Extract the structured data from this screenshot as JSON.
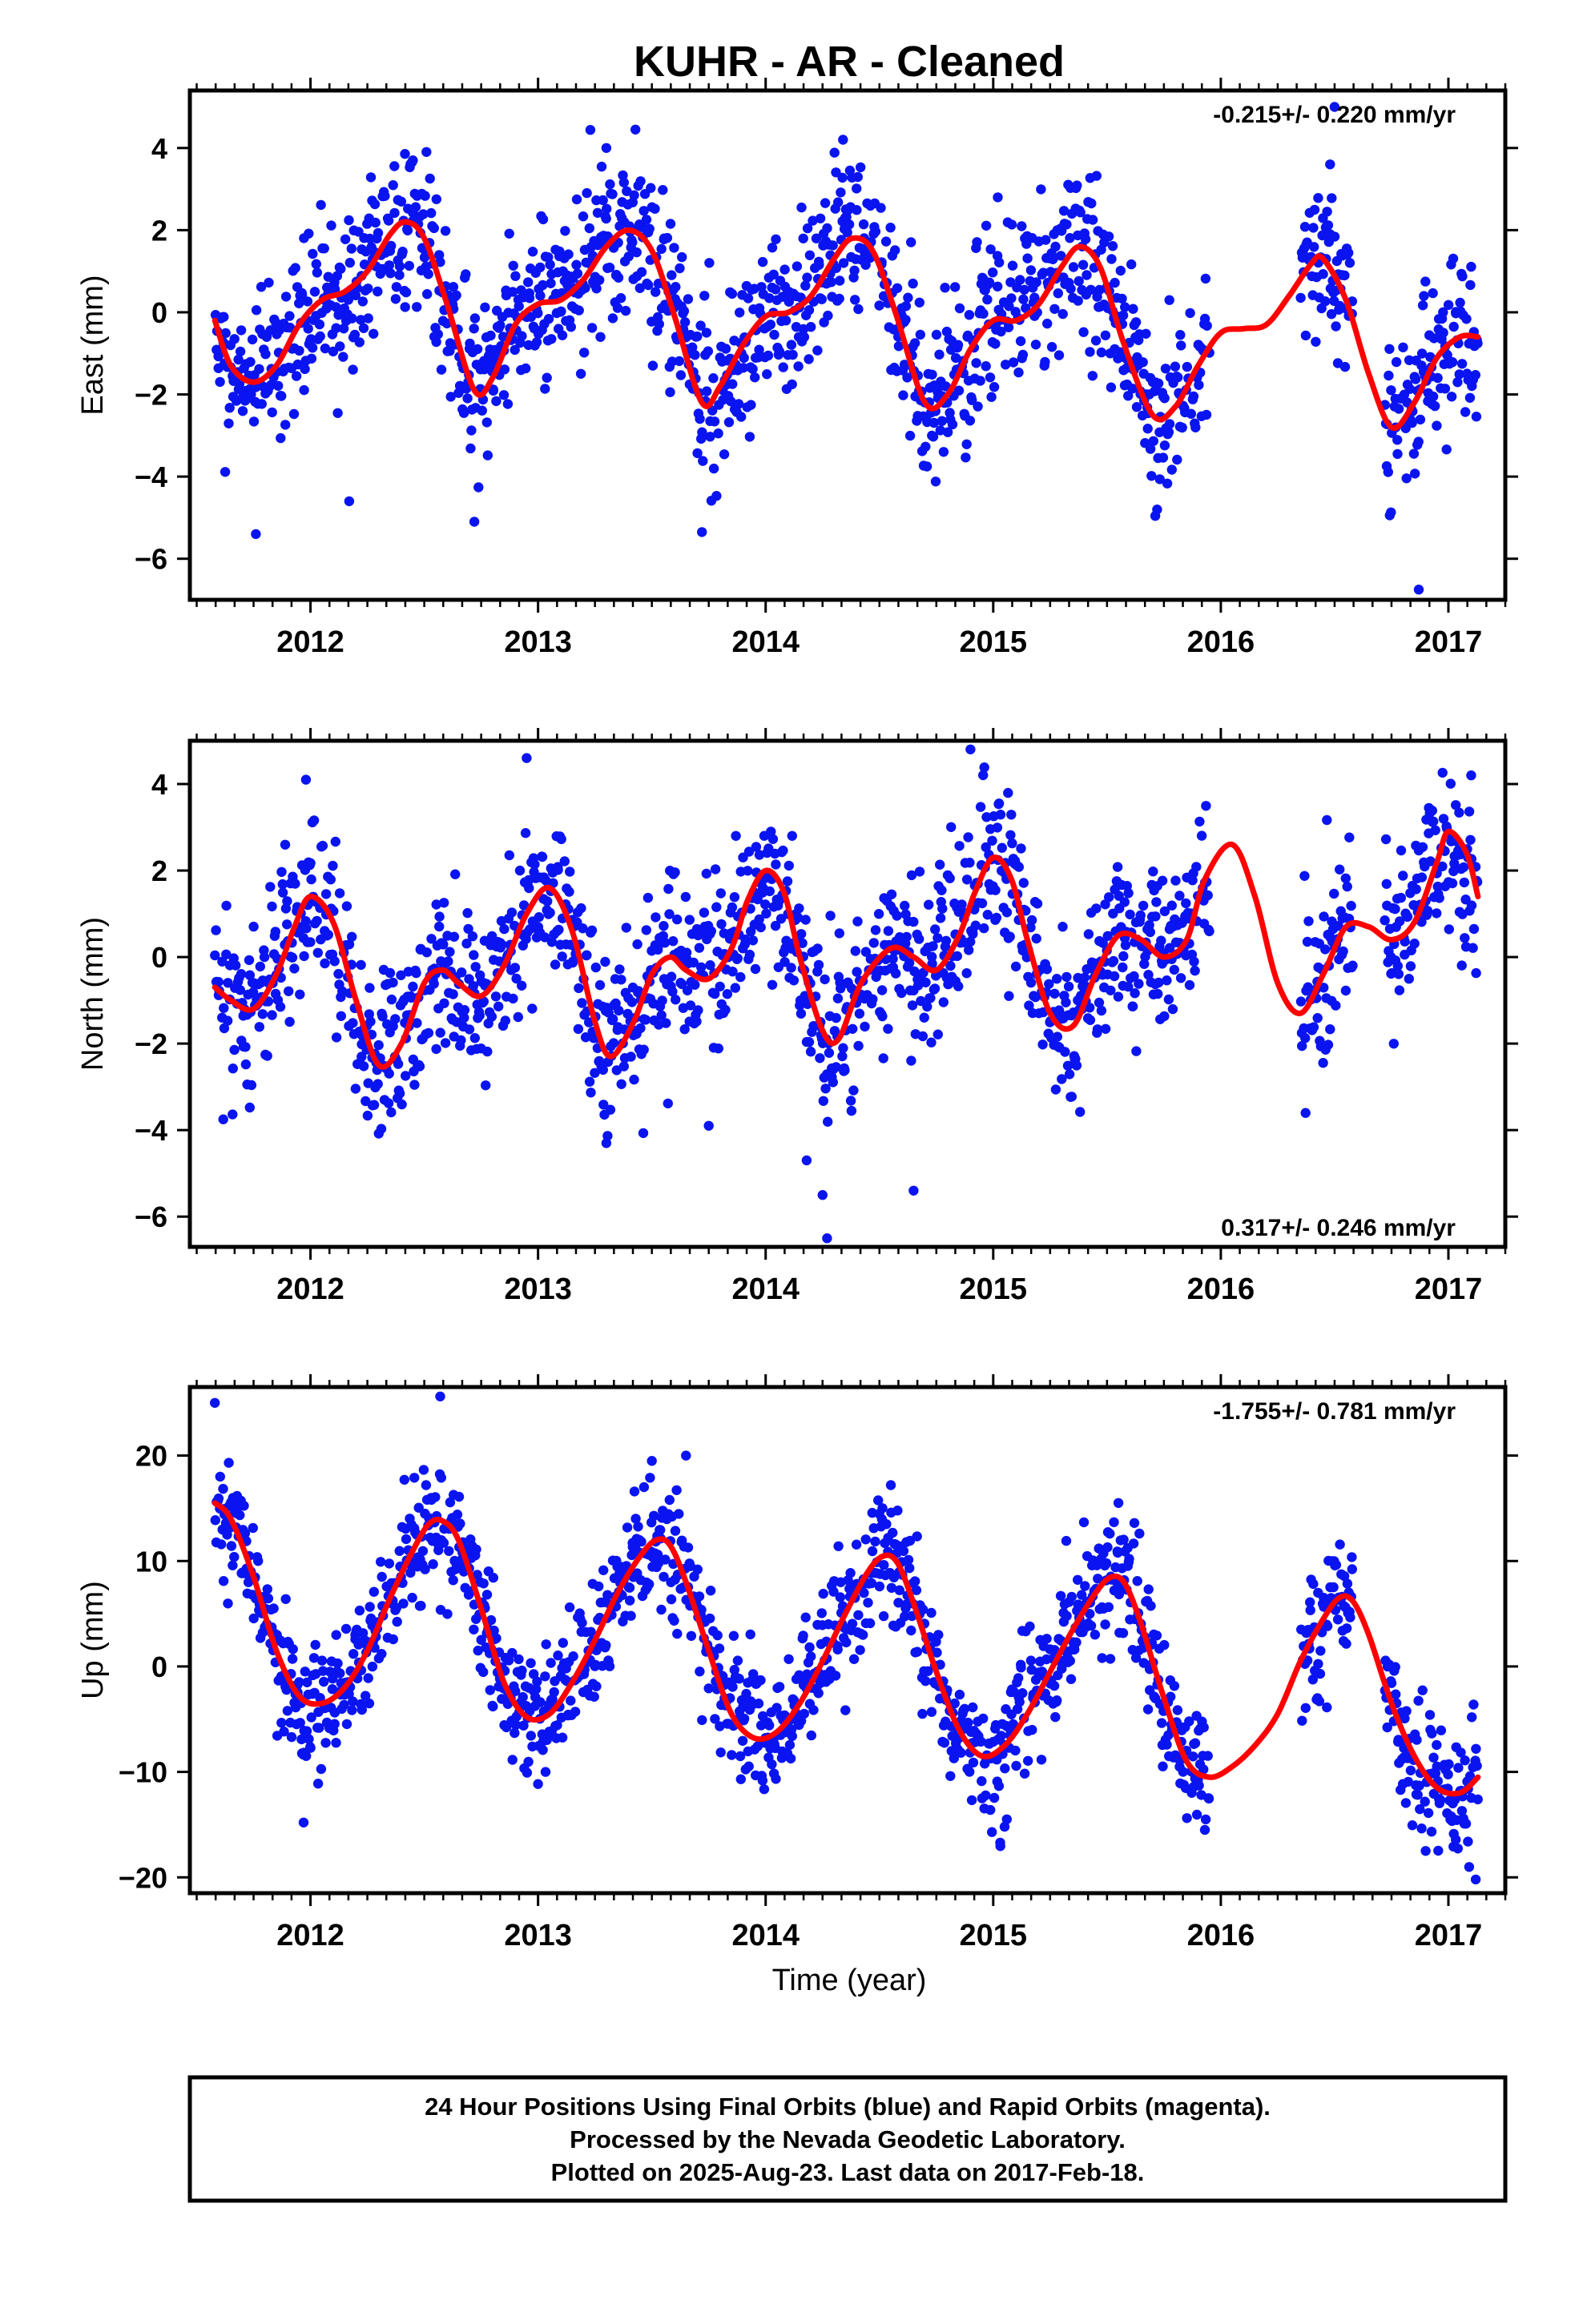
{
  "page": {
    "title": "KUHR  - AR - Cleaned",
    "xlabel": "Time (year)",
    "footer": [
      "24 Hour Positions Using Final Orbits (blue) and Rapid Orbits (magenta).",
      "Processed by the Nevada Geodetic Laboratory.",
      "Plotted on 2025-Aug-23. Last data on 2017-Feb-18."
    ]
  },
  "colors": {
    "final_orbits": "#0a14f0",
    "model_fit": "#ff0000",
    "frame": "#000000",
    "background": "#ffffff"
  },
  "chart_data": [
    {
      "type": "scatter",
      "component": "east",
      "ylabel": "East (mm)",
      "rate_label": "-0.215+/- 0.220 mm/yr",
      "rate_placement": "top-right",
      "xlim": [
        2011.47,
        2017.25
      ],
      "ylim": [
        -7,
        5.4
      ],
      "xticks": [
        2012,
        2013,
        2014,
        2015,
        2016,
        2017
      ],
      "xtick_labels": [
        "2012",
        "2013",
        "2014",
        "2015",
        "2016",
        "2017"
      ],
      "yticks": [
        -6,
        -4,
        -2,
        0,
        2,
        4
      ],
      "ytick_labels": [
        "−6",
        "−4",
        "−2",
        "0",
        "2",
        "4"
      ],
      "grid": false,
      "observations": {
        "name": "Final Orbits",
        "data_spans": [
          [
            2011.58,
            2011.9
          ],
          [
            2011.9,
            2012.9
          ],
          [
            2012.9,
            2013.9
          ],
          [
            2013.9,
            2014.9
          ],
          [
            2014.9,
            2015.95
          ],
          [
            2016.35,
            2016.58
          ],
          [
            2016.72,
            2017.13
          ]
        ],
        "scatter_sd": 1.0,
        "outliers": [
          [
            2011.76,
            -5.4
          ],
          [
            2012.17,
            -4.6
          ],
          [
            2012.72,
            -5.1
          ],
          [
            2013.72,
            -5.35
          ],
          [
            2014.34,
            4.2
          ],
          [
            2015.72,
            -4.8
          ],
          [
            2016.48,
            3.6
          ],
          [
            2016.5,
            5.0
          ],
          [
            2016.87,
            -6.75
          ],
          [
            2013.3,
            4.0
          ],
          [
            2012.45,
            3.7
          ],
          [
            2015.02,
            2.8
          ]
        ]
      },
      "model_fit": {
        "name": "Model",
        "x": [
          2011.58,
          2011.65,
          2011.75,
          2011.85,
          2011.95,
          2012.05,
          2012.15,
          2012.25,
          2012.35,
          2012.42,
          2012.5,
          2012.6,
          2012.72,
          2012.8,
          2012.9,
          2013.0,
          2013.1,
          2013.2,
          2013.3,
          2013.4,
          2013.5,
          2013.6,
          2013.72,
          2013.8,
          2013.9,
          2014.0,
          2014.1,
          2014.2,
          2014.3,
          2014.38,
          2014.47,
          2014.57,
          2014.7,
          2014.8,
          2014.9,
          2015.0,
          2015.1,
          2015.2,
          2015.3,
          2015.38,
          2015.47,
          2015.57,
          2015.7,
          2015.8,
          2015.9,
          2016.0,
          2016.1,
          2016.2,
          2016.3,
          2016.4,
          2016.45,
          2016.55,
          2016.65,
          2016.75,
          2016.85,
          2016.95,
          2017.05,
          2017.13
        ],
        "y": [
          -0.2,
          -1.3,
          -1.7,
          -1.3,
          -0.3,
          0.3,
          0.5,
          1.0,
          1.9,
          2.2,
          1.8,
          0.2,
          -1.9,
          -1.6,
          -0.3,
          0.2,
          0.3,
          0.8,
          1.6,
          2.0,
          1.5,
          -0.1,
          -2.2,
          -1.8,
          -0.8,
          -0.1,
          0.0,
          0.4,
          1.3,
          1.8,
          1.5,
          0.0,
          -2.2,
          -2.0,
          -0.9,
          -0.2,
          -0.2,
          0.2,
          1.1,
          1.6,
          1.1,
          -0.7,
          -2.5,
          -2.3,
          -1.3,
          -0.5,
          -0.4,
          -0.3,
          0.4,
          1.2,
          1.3,
          0.3,
          -1.5,
          -2.8,
          -2.2,
          -1.1,
          -0.6,
          -0.6
        ]
      }
    },
    {
      "type": "scatter",
      "component": "north",
      "ylabel": "North (mm)",
      "rate_label": "0.317+/- 0.246 mm/yr",
      "rate_placement": "bottom-right",
      "xlim": [
        2011.47,
        2017.25
      ],
      "ylim": [
        -6.7,
        5.0
      ],
      "xticks": [
        2012,
        2013,
        2014,
        2015,
        2016,
        2017
      ],
      "xtick_labels": [
        "2012",
        "2013",
        "2014",
        "2015",
        "2016",
        "2017"
      ],
      "yticks": [
        -6,
        -4,
        -2,
        0,
        2,
        4
      ],
      "ytick_labels": [
        "−6",
        "−4",
        "−2",
        "0",
        "2",
        "4"
      ],
      "grid": false,
      "observations": {
        "name": "Final Orbits",
        "data_spans": [
          [
            2011.58,
            2011.9
          ],
          [
            2011.9,
            2012.9
          ],
          [
            2012.9,
            2013.9
          ],
          [
            2013.9,
            2014.9
          ],
          [
            2014.9,
            2015.95
          ],
          [
            2016.35,
            2016.58
          ],
          [
            2016.72,
            2017.13
          ]
        ],
        "scatter_sd": 1.0,
        "outliers": [
          [
            2012.95,
            4.6
          ],
          [
            2014.9,
            4.8
          ],
          [
            2014.27,
            -6.5
          ],
          [
            2014.25,
            -5.5
          ],
          [
            2014.65,
            -5.4
          ],
          [
            2013.3,
            -4.3
          ],
          [
            2013.75,
            -3.9
          ],
          [
            2011.98,
            4.1
          ],
          [
            2017.1,
            4.2
          ],
          [
            2014.18,
            -4.7
          ]
        ]
      },
      "model_fit": {
        "name": "Model",
        "x": [
          2011.58,
          2011.65,
          2011.75,
          2011.85,
          2011.93,
          2012.0,
          2012.1,
          2012.2,
          2012.3,
          2012.4,
          2012.5,
          2012.58,
          2012.65,
          2012.75,
          2012.85,
          2012.95,
          2013.05,
          2013.15,
          2013.25,
          2013.32,
          2013.42,
          2013.5,
          2013.58,
          2013.65,
          2013.75,
          2013.85,
          2013.92,
          2014.0,
          2014.08,
          2014.15,
          2014.25,
          2014.32,
          2014.42,
          2014.55,
          2014.65,
          2014.75,
          2014.85,
          2014.92,
          2015.0,
          2015.08,
          2015.15,
          2015.25,
          2015.35,
          2015.45,
          2015.55,
          2015.65,
          2015.75,
          2015.85,
          2015.93,
          2016.05,
          2016.15,
          2016.25,
          2016.35,
          2016.45,
          2016.55,
          2016.65,
          2016.75,
          2016.85,
          2016.95,
          2017.0,
          2017.08,
          2017.13
        ],
        "y": [
          -0.7,
          -1.0,
          -1.2,
          -0.4,
          0.7,
          1.4,
          0.8,
          -1.0,
          -2.5,
          -2.0,
          -0.6,
          -0.3,
          -0.6,
          -0.9,
          -0.2,
          1.0,
          1.6,
          0.6,
          -1.5,
          -2.3,
          -1.5,
          -0.4,
          0.0,
          -0.3,
          -0.5,
          0.2,
          1.3,
          2.0,
          1.5,
          0.0,
          -1.7,
          -1.9,
          -0.6,
          0.2,
          0.0,
          -0.3,
          0.5,
          1.5,
          2.3,
          1.8,
          0.4,
          -1.3,
          -1.6,
          -0.4,
          0.5,
          0.4,
          0.0,
          0.4,
          1.8,
          2.6,
          1.4,
          -0.6,
          -1.3,
          -0.4,
          0.7,
          0.7,
          0.4,
          0.8,
          2.2,
          2.9,
          2.4,
          1.4
        ]
      }
    },
    {
      "type": "scatter",
      "component": "up",
      "ylabel": "Up (mm)",
      "rate_label": "-1.755+/- 0.781 mm/yr",
      "rate_placement": "top-right",
      "xlim": [
        2011.47,
        2017.25
      ],
      "ylim": [
        -21.5,
        26.5
      ],
      "xticks": [
        2012,
        2013,
        2014,
        2015,
        2016,
        2017
      ],
      "xtick_labels": [
        "2012",
        "2013",
        "2014",
        "2015",
        "2016",
        "2017"
      ],
      "yticks": [
        -20,
        -10,
        0,
        10,
        20
      ],
      "ytick_labels": [
        "−20",
        "−10",
        "0",
        "10",
        "20"
      ],
      "grid": false,
      "observations": {
        "name": "Final Orbits",
        "data_spans": [
          [
            2011.58,
            2011.9
          ],
          [
            2011.9,
            2012.9
          ],
          [
            2012.9,
            2013.9
          ],
          [
            2013.9,
            2014.9
          ],
          [
            2014.9,
            2015.95
          ],
          [
            2016.35,
            2016.58
          ],
          [
            2016.72,
            2017.13
          ]
        ],
        "scatter_sd": 3.2,
        "outliers": [
          [
            2011.58,
            25.0
          ],
          [
            2012.57,
            25.6
          ],
          [
            2013.65,
            20.0
          ],
          [
            2011.97,
            -14.8
          ],
          [
            2013.5,
            19.5
          ],
          [
            2014.55,
            17.2
          ],
          [
            2015.55,
            15.5
          ],
          [
            2015.93,
            -15.5
          ],
          [
            2017.12,
            -20.2
          ],
          [
            2015.05,
            -15.2
          ],
          [
            2016.9,
            -17.5
          ]
        ]
      },
      "model_fit": {
        "name": "Model",
        "x": [
          2011.58,
          2011.65,
          2011.75,
          2011.85,
          2011.95,
          2012.05,
          2012.15,
          2012.25,
          2012.35,
          2012.45,
          2012.52,
          2012.58,
          2012.65,
          2012.75,
          2012.85,
          2012.95,
          2013.05,
          2013.15,
          2013.25,
          2013.35,
          2013.45,
          2013.52,
          2013.58,
          2013.65,
          2013.75,
          2013.85,
          2013.95,
          2014.05,
          2014.15,
          2014.25,
          2014.35,
          2014.45,
          2014.52,
          2014.58,
          2014.65,
          2014.75,
          2014.85,
          2014.95,
          2015.05,
          2015.15,
          2015.25,
          2015.35,
          2015.45,
          2015.52,
          2015.58,
          2015.65,
          2015.75,
          2015.85,
          2015.95,
          2016.05,
          2016.15,
          2016.25,
          2016.35,
          2016.45,
          2016.52,
          2016.58,
          2016.65,
          2016.75,
          2016.85,
          2016.95,
          2017.05,
          2017.13
        ],
        "y": [
          15.5,
          14.0,
          8.5,
          1.5,
          -2.8,
          -3.5,
          -2.0,
          1.5,
          6.5,
          11.0,
          13.5,
          13.8,
          12.0,
          5.5,
          -1.5,
          -4.8,
          -4.5,
          -1.5,
          2.5,
          7.0,
          10.5,
          12.0,
          11.5,
          8.0,
          1.5,
          -4.5,
          -6.8,
          -6.2,
          -3.5,
          0.5,
          5.0,
          9.0,
          10.5,
          9.8,
          6.0,
          -0.5,
          -6.0,
          -8.5,
          -7.5,
          -4.5,
          -0.5,
          3.5,
          7.0,
          8.5,
          7.8,
          4.0,
          -3.0,
          -9.0,
          -10.5,
          -9.5,
          -7.5,
          -4.5,
          0.5,
          4.5,
          6.5,
          6.2,
          3.0,
          -3.5,
          -8.5,
          -11.5,
          -12.0,
          -10.5
        ]
      }
    }
  ]
}
